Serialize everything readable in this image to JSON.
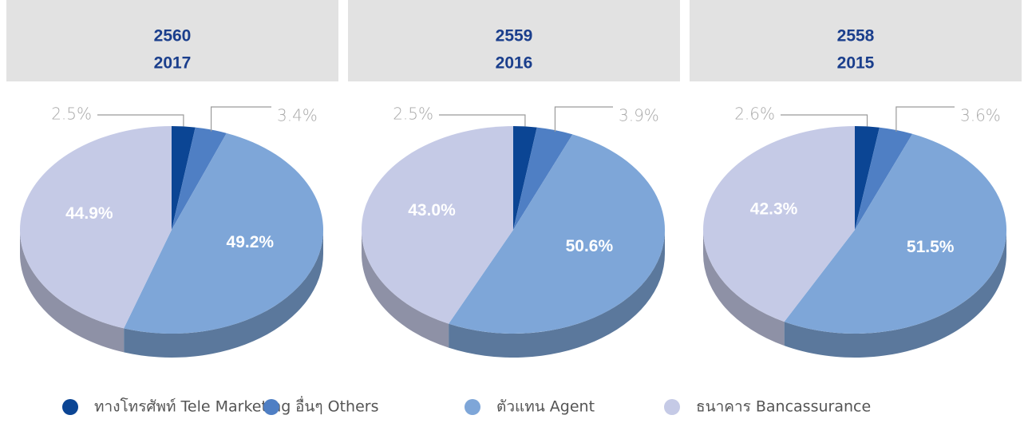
{
  "chart_data": [
    {
      "type": "pie",
      "title": "2560",
      "subtitle": "2017",
      "values": [
        2.5,
        3.4,
        49.2,
        44.9
      ],
      "value_labels": [
        "2.5%",
        "3.4%",
        "49.2%",
        "44.9%"
      ]
    },
    {
      "type": "pie",
      "title": "2559",
      "subtitle": "2016",
      "values": [
        2.5,
        3.9,
        50.6,
        43.0
      ],
      "value_labels": [
        "2.5%",
        "3.9%",
        "50.6%",
        "43.0%"
      ]
    },
    {
      "type": "pie",
      "title": "2558",
      "subtitle": "2015",
      "values": [
        2.6,
        3.6,
        51.5,
        42.3
      ],
      "value_labels": [
        "2.6%",
        "3.6%",
        "51.5%",
        "42.3%"
      ]
    }
  ],
  "legend": {
    "labels": [
      "ทางโทรศัพท์ Tele Marketing",
      "อื่นๆ Others",
      "ตัวแทน Agent",
      "ธนาคาร Bancassurance"
    ],
    "colors": [
      "#0b4594",
      "#4f7fc4",
      "#7ea6d8",
      "#c5cae6"
    ]
  }
}
